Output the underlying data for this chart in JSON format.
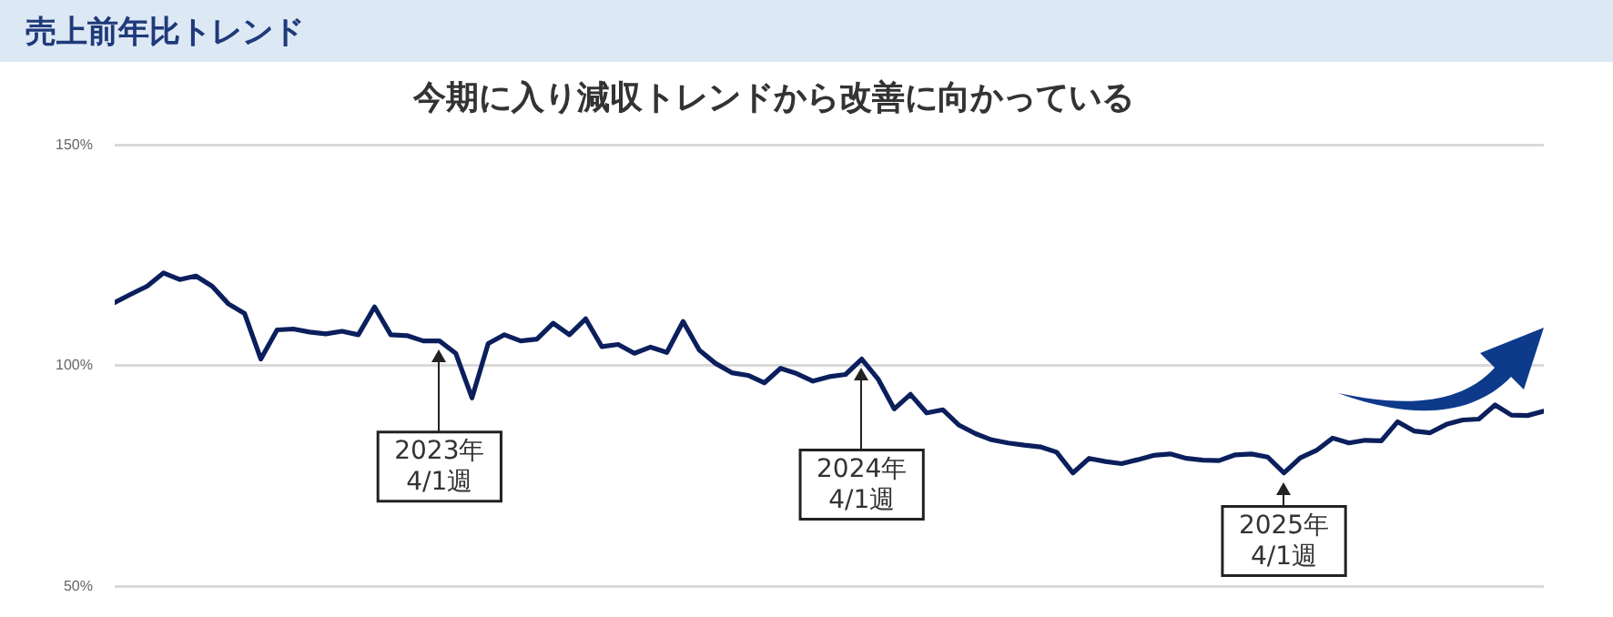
{
  "chart_data": {
    "type": "line",
    "title": "売上前年比トレンド",
    "subtitle": "今期に入り減収トレンドから改善に向かっている",
    "categories": [
      null,
      null,
      null,
      null,
      null,
      null,
      null,
      null,
      null,
      null,
      null,
      null,
      null,
      null,
      null,
      null,
      null,
      null,
      null,
      null,
      "2023年\n4/1週",
      null,
      null,
      null,
      null,
      null,
      null,
      null,
      null,
      null,
      null,
      null,
      null,
      null,
      null,
      null,
      null,
      null,
      null,
      null,
      null,
      null,
      null,
      null,
      null,
      null,
      "2024年\n4/1週",
      null,
      null,
      null,
      null,
      null,
      null,
      null,
      null,
      null,
      null,
      null,
      null,
      null,
      null,
      null,
      null,
      null,
      null,
      null,
      null,
      null,
      null,
      null,
      null,
      null,
      "2025年\n4/1週",
      null,
      null,
      null,
      null,
      null,
      null,
      null,
      null,
      null,
      null,
      null,
      null,
      null,
      null,
      null,
      null
    ],
    "series": [
      {
        "color": "#0a1f5c",
        "values": [
          114.3,
          116.2,
          118,
          121,
          119.5,
          120.3,
          118,
          114,
          111.8,
          101.5,
          108.1,
          108.3,
          107.6,
          107.2,
          107.8,
          107,
          113.3,
          107,
          106.8,
          105.6,
          105.6,
          102.8,
          92.7,
          105,
          107,
          105.6,
          106,
          109.6,
          107,
          110.6,
          104.3,
          104.8,
          102.8,
          104.2,
          103,
          110,
          103.5,
          100.5,
          98.4,
          97.8,
          96.1,
          99.4,
          98.2,
          96.5,
          97.5,
          98,
          101.5,
          97,
          90.2,
          93.5,
          89.3,
          90,
          86.5,
          84.6,
          83.2,
          82.5,
          82,
          81.6,
          80.4,
          75.7,
          79,
          78.3,
          77.8,
          78.7,
          79.7,
          80,
          79,
          78.6,
          78.5,
          79.8,
          80,
          79.3,
          75.7,
          79.1,
          80.8,
          83.6,
          82.5,
          83.1,
          83,
          87.3,
          85.2,
          84.8,
          86.7,
          87.7,
          87.9,
          91.1,
          88.8,
          88.7,
          89.7
        ]
      }
    ],
    "ylim": [
      50,
      150
    ],
    "yticks": [
      {
        "value": 50,
        "label": "50%"
      },
      {
        "value": 100,
        "label": "100%"
      },
      {
        "value": 150,
        "label": "150%"
      }
    ],
    "grid": "y",
    "tick_labels": "y",
    "line_style": "solid"
  }
}
